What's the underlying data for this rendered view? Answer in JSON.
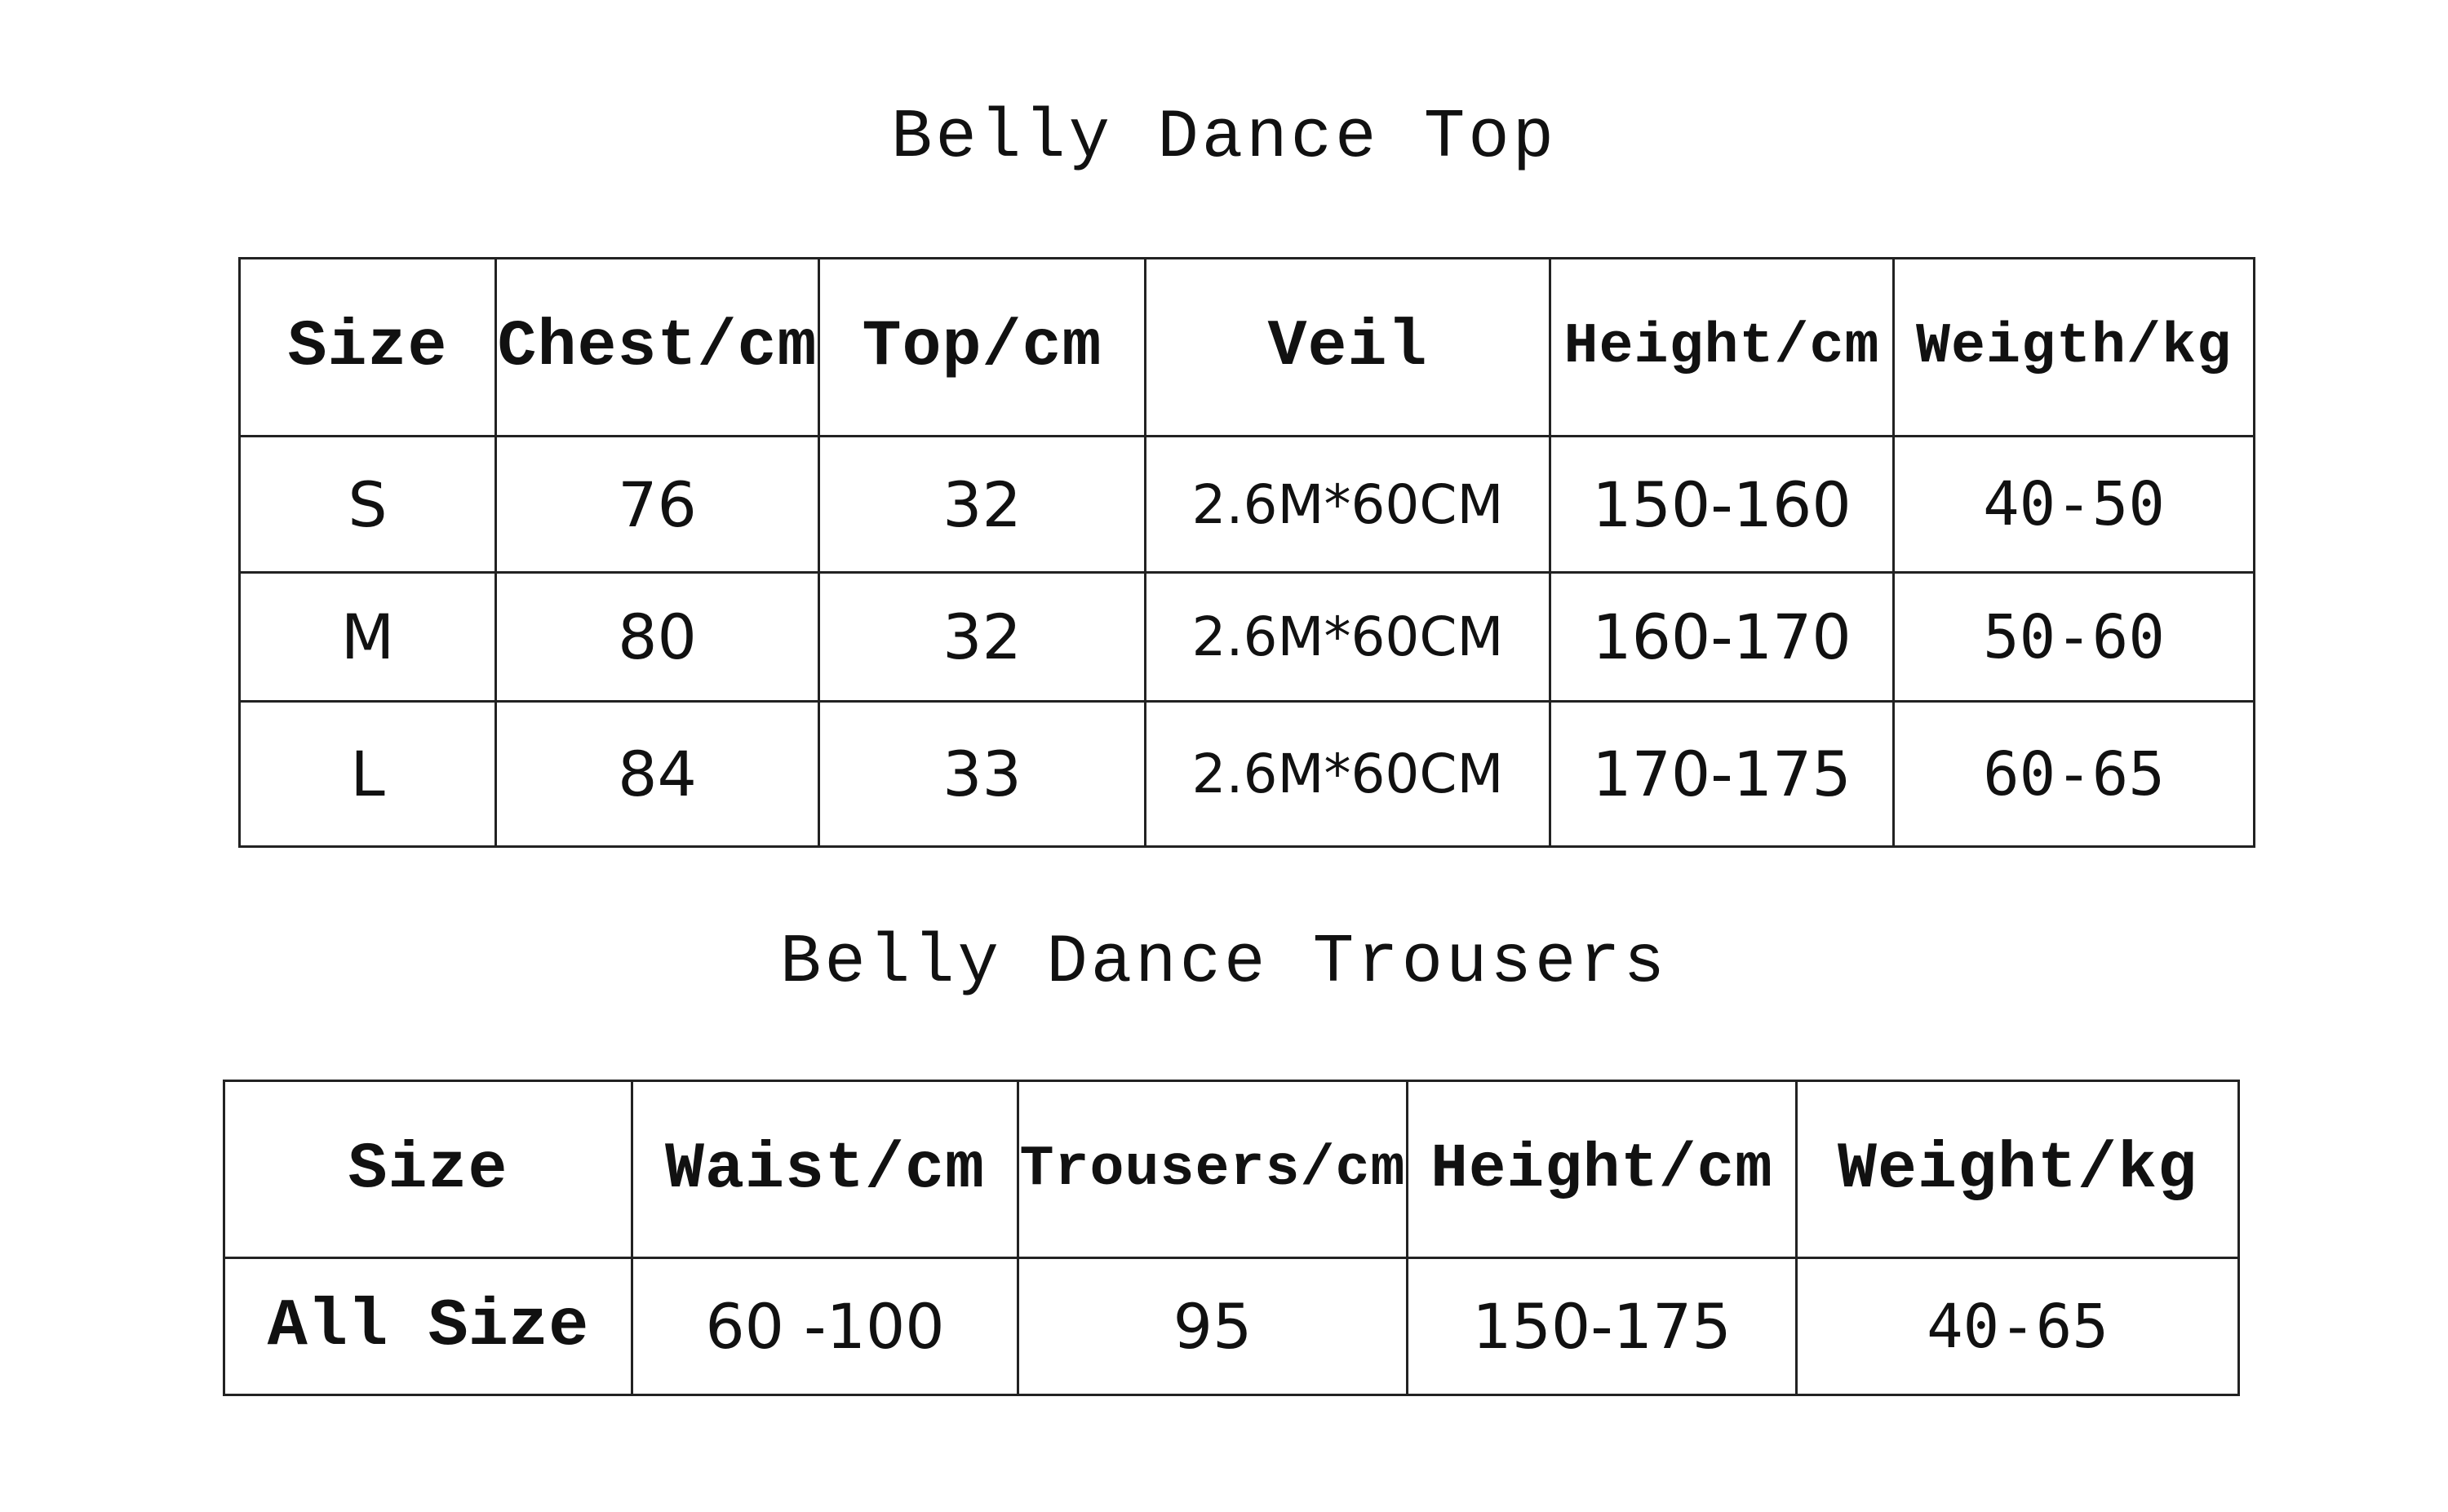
{
  "top": {
    "title": "Belly Dance Top",
    "headers": [
      "Size",
      "Chest/cm",
      "Top/cm",
      "Veil",
      "Height/cm",
      "Weigth/kg"
    ],
    "rows": [
      [
        "S",
        "76",
        "32",
        "2.6M*60CM",
        "150-160",
        "40-50"
      ],
      [
        "M",
        "80",
        "32",
        "2.6M*60CM",
        "160-170",
        "50-60"
      ],
      [
        "L",
        "84",
        "33",
        "2.6M*60CM",
        "170-175",
        "60-65"
      ]
    ]
  },
  "trousers": {
    "title": "Belly Dance Trousers",
    "headers": [
      "Size",
      "Waist/cm",
      "Trousers/cm",
      "Height/cm",
      "Weight/kg"
    ],
    "rows": [
      [
        "All Size",
        "60 -100",
        "95",
        "150-175",
        "40-65"
      ]
    ]
  }
}
